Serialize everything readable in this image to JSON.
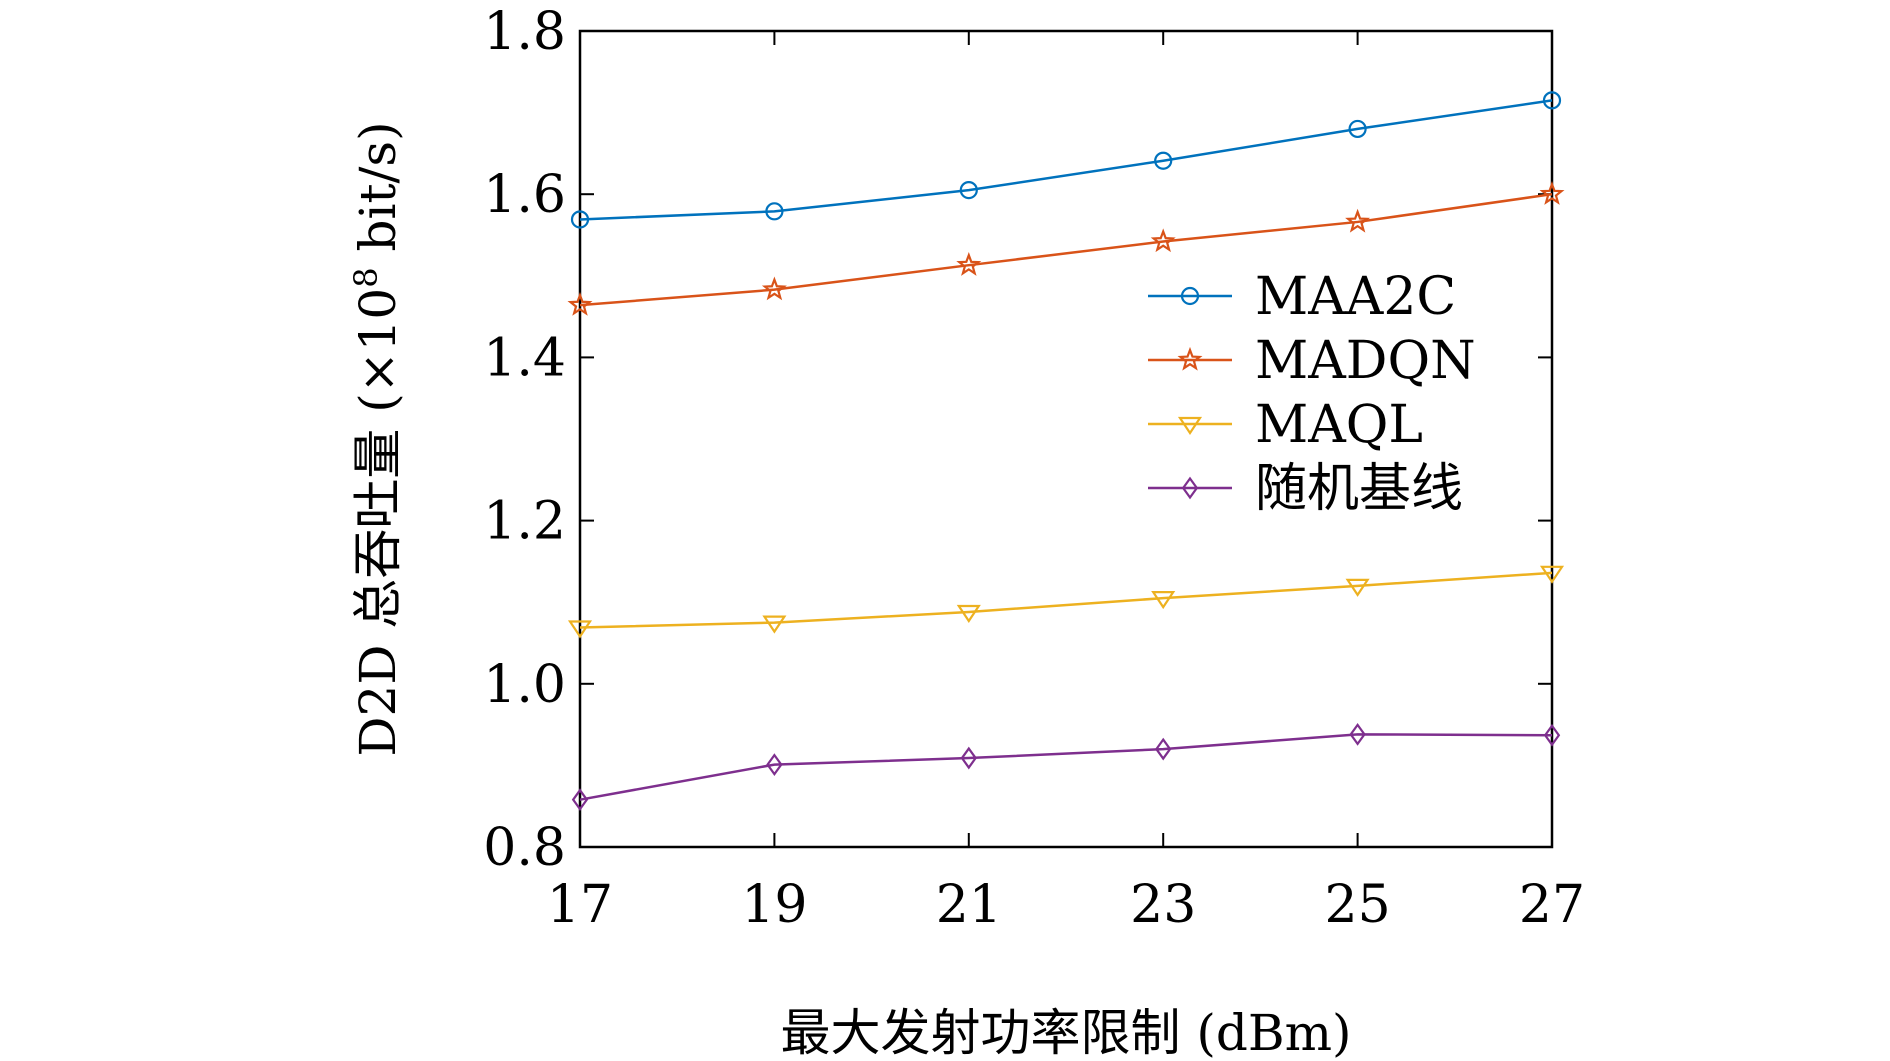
{
  "chart_data": {
    "type": "line",
    "title": "",
    "xlabel": "最大发射功率限制 (dBm)",
    "ylabel_prefix": "D2D 总吞吐量 (×10",
    "ylabel_exp": "8",
    "ylabel_suffix": " bit/s)",
    "x": [
      17,
      19,
      21,
      23,
      25,
      27
    ],
    "xlim": [
      17,
      27
    ],
    "ylim": [
      0.8,
      1.8
    ],
    "xticks": [
      17,
      19,
      21,
      23,
      25,
      27
    ],
    "yticks": [
      0.8,
      1.0,
      1.2,
      1.4,
      1.6,
      1.8
    ],
    "ytick_labels": [
      "0.8",
      "1.0",
      "1.2",
      "1.4",
      "1.6",
      "1.8"
    ],
    "grid": false,
    "legend_position": "right-middle",
    "series": [
      {
        "name": "MAA2C",
        "color": "#0072BD",
        "marker": "circle",
        "values": [
          1.569,
          1.579,
          1.605,
          1.641,
          1.68,
          1.715
        ]
      },
      {
        "name": "MADQN",
        "color": "#D95319",
        "marker": "star",
        "values": [
          1.464,
          1.483,
          1.513,
          1.542,
          1.566,
          1.6
        ]
      },
      {
        "name": "MAQL",
        "color": "#EDB120",
        "marker": "triangle-down",
        "values": [
          1.069,
          1.075,
          1.088,
          1.105,
          1.12,
          1.136
        ]
      },
      {
        "name": "随机基线",
        "color": "#7E2F8E",
        "marker": "diamond",
        "values": [
          0.858,
          0.901,
          0.909,
          0.92,
          0.938,
          0.937
        ]
      }
    ]
  }
}
